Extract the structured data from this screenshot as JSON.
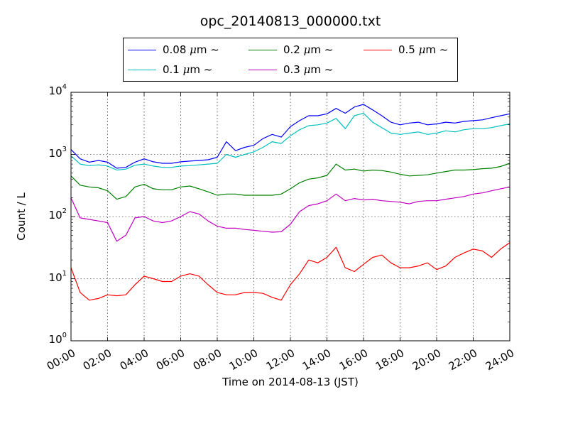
{
  "chart_data": {
    "type": "line",
    "title": "opc_20140813_000000.txt",
    "xlabel": "Time on 2014-08-13 (JST)",
    "ylabel": "Count / L",
    "yscale": "log",
    "ylim": [
      1,
      10000
    ],
    "yticks": [
      {
        "base": "10",
        "exp": "0"
      },
      {
        "base": "10",
        "exp": "1"
      },
      {
        "base": "10",
        "exp": "2"
      },
      {
        "base": "10",
        "exp": "3"
      },
      {
        "base": "10",
        "exp": "4"
      }
    ],
    "xlim": [
      "00:00",
      "24:00"
    ],
    "xticks": [
      "00:00",
      "02:00",
      "04:00",
      "06:00",
      "08:00",
      "10:00",
      "12:00",
      "14:00",
      "16:00",
      "18:00",
      "20:00",
      "22:00",
      "24:00"
    ],
    "grid": true,
    "legend_position": "top-center",
    "x": [
      "00:00",
      "00:30",
      "01:00",
      "01:30",
      "02:00",
      "02:30",
      "03:00",
      "03:30",
      "04:00",
      "04:30",
      "05:00",
      "05:30",
      "06:00",
      "06:30",
      "07:00",
      "07:30",
      "08:00",
      "08:30",
      "09:00",
      "09:30",
      "10:00",
      "10:30",
      "11:00",
      "11:30",
      "12:00",
      "12:30",
      "13:00",
      "13:30",
      "14:00",
      "14:30",
      "15:00",
      "15:30",
      "16:00",
      "16:30",
      "17:00",
      "17:30",
      "18:00",
      "18:30",
      "19:00",
      "19:30",
      "20:00",
      "20:30",
      "21:00",
      "21:30",
      "22:00",
      "22:30",
      "23:00",
      "23:30",
      "24:00"
    ],
    "series": [
      {
        "name": "0.08 μm ~",
        "color": "#0000ff",
        "values": [
          1200,
          850,
          750,
          800,
          750,
          600,
          620,
          750,
          850,
          760,
          720,
          720,
          760,
          780,
          800,
          820,
          900,
          1600,
          1150,
          1300,
          1400,
          1800,
          2100,
          1900,
          2800,
          3500,
          4200,
          4200,
          4500,
          5500,
          4600,
          5800,
          6400,
          5200,
          4200,
          3300,
          3000,
          3200,
          3300,
          3000,
          3100,
          3300,
          3200,
          3400,
          3500,
          3600,
          3900,
          4200,
          4500
        ]
      },
      {
        "name": "0.1 μm ~",
        "color": "#00bfbf",
        "values": [
          950,
          700,
          660,
          680,
          650,
          560,
          580,
          670,
          700,
          650,
          620,
          620,
          650,
          660,
          680,
          700,
          720,
          1000,
          900,
          1000,
          1100,
          1300,
          1600,
          1500,
          2000,
          2500,
          2900,
          3000,
          3200,
          3800,
          2600,
          4200,
          4600,
          3300,
          2700,
          2200,
          2100,
          2200,
          2300,
          2100,
          2200,
          2400,
          2300,
          2500,
          2600,
          2600,
          2700,
          2900,
          3100
        ]
      },
      {
        "name": "0.2 μm ~",
        "color": "#008000",
        "values": [
          450,
          320,
          300,
          290,
          260,
          190,
          210,
          300,
          330,
          280,
          270,
          270,
          300,
          310,
          280,
          250,
          220,
          230,
          230,
          220,
          220,
          220,
          220,
          230,
          280,
          350,
          400,
          420,
          460,
          700,
          560,
          580,
          540,
          560,
          550,
          520,
          480,
          450,
          460,
          470,
          500,
          530,
          560,
          560,
          570,
          590,
          600,
          640,
          720
        ]
      },
      {
        "name": "0.3 μm ~",
        "color": "#bf00bf",
        "values": [
          200,
          95,
          90,
          85,
          80,
          40,
          50,
          95,
          100,
          85,
          80,
          85,
          100,
          120,
          110,
          85,
          70,
          65,
          65,
          62,
          60,
          58,
          56,
          57,
          75,
          120,
          150,
          160,
          180,
          230,
          180,
          195,
          185,
          190,
          180,
          175,
          170,
          160,
          175,
          180,
          180,
          190,
          200,
          210,
          230,
          240,
          260,
          280,
          300
        ]
      },
      {
        "name": "0.5 μm ~",
        "color": "#ff0000",
        "values": [
          15,
          6,
          4.5,
          4.8,
          5.5,
          5.3,
          5.5,
          8,
          11,
          10,
          9,
          9,
          11,
          12,
          11,
          8,
          6,
          5.5,
          5.5,
          6,
          6,
          5.8,
          5,
          4.5,
          8,
          12,
          20,
          18,
          22,
          32,
          15,
          13,
          17,
          22,
          24,
          18,
          15,
          15,
          16,
          18,
          14,
          16,
          22,
          26,
          30,
          28,
          22,
          30,
          38
        ]
      }
    ]
  }
}
